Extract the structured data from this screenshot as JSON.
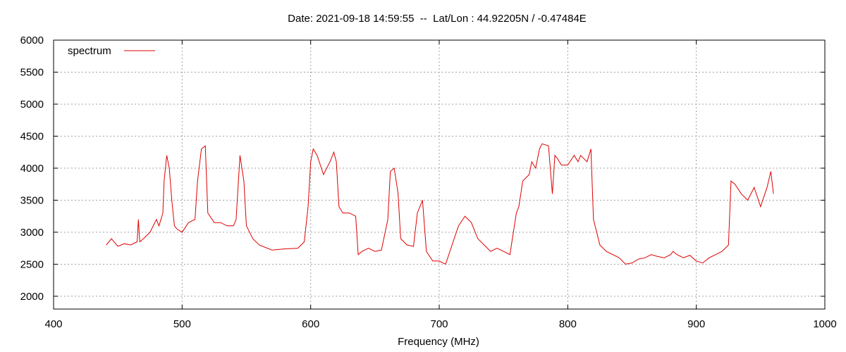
{
  "chart_data": {
    "type": "line",
    "title": "Date: 2021-09-18 14:59:55  --  Lat/Lon : 44.92205N / -0.47484E",
    "xlabel": "Frequency (MHz)",
    "ylabel": "",
    "xlim": [
      400,
      1000
    ],
    "ylim": [
      1800,
      6000
    ],
    "xticks": [
      400,
      500,
      600,
      700,
      800,
      900,
      1000
    ],
    "yticks": [
      2000,
      2500,
      3000,
      3500,
      4000,
      4500,
      5000,
      5500,
      6000
    ],
    "grid": true,
    "legend_position": "top-left",
    "series": [
      {
        "name": "spectrum",
        "color": "#dd0000",
        "x": [
          441,
          445,
          450,
          455,
          460,
          465,
          466,
          467,
          470,
          475,
          480,
          482,
          485,
          486,
          488,
          490,
          492,
          494,
          496,
          500,
          505,
          510,
          512,
          515,
          518,
          520,
          525,
          530,
          535,
          540,
          542,
          545,
          548,
          550,
          555,
          560,
          570,
          580,
          590,
          595,
          598,
          600,
          602,
          605,
          610,
          615,
          618,
          620,
          622,
          625,
          630,
          635,
          637,
          640,
          645,
          650,
          655,
          660,
          662,
          665,
          668,
          670,
          675,
          680,
          683,
          687,
          690,
          695,
          700,
          705,
          710,
          715,
          720,
          725,
          730,
          735,
          740,
          745,
          750,
          755,
          760,
          762,
          765,
          770,
          772,
          775,
          778,
          780,
          785,
          788,
          790,
          792,
          795,
          800,
          805,
          808,
          810,
          815,
          818,
          820,
          825,
          830,
          840,
          845,
          850,
          855,
          860,
          865,
          870,
          875,
          880,
          882,
          885,
          890,
          895,
          900,
          905,
          910,
          915,
          920,
          925,
          927,
          930,
          935,
          940,
          945,
          950,
          955,
          958,
          960
        ],
        "values": [
          2800,
          2900,
          2780,
          2820,
          2800,
          2850,
          3200,
          2850,
          2900,
          3000,
          3200,
          3100,
          3300,
          3800,
          4200,
          4000,
          3500,
          3100,
          3050,
          3000,
          3150,
          3200,
          3800,
          4300,
          4350,
          3300,
          3150,
          3150,
          3100,
          3100,
          3200,
          4200,
          3800,
          3100,
          2900,
          2800,
          2720,
          2740,
          2750,
          2850,
          3400,
          4100,
          4300,
          4200,
          3900,
          4100,
          4250,
          4100,
          3400,
          3300,
          3300,
          3250,
          2650,
          2700,
          2750,
          2700,
          2720,
          3200,
          3950,
          4000,
          3600,
          2900,
          2800,
          2780,
          3300,
          3500,
          2700,
          2550,
          2550,
          2500,
          2800,
          3100,
          3250,
          3150,
          2900,
          2800,
          2700,
          2750,
          2700,
          2650,
          3300,
          3400,
          3800,
          3900,
          4100,
          4000,
          4300,
          4380,
          4350,
          3600,
          4200,
          4150,
          4050,
          4050,
          4200,
          4100,
          4200,
          4100,
          4300,
          3200,
          2800,
          2700,
          2600,
          2500,
          2520,
          2580,
          2600,
          2650,
          2620,
          2600,
          2650,
          2700,
          2650,
          2600,
          2640,
          2550,
          2520,
          2600,
          2650,
          2700,
          2800,
          3800,
          3750,
          3600,
          3500,
          3700,
          3400,
          3700,
          3950,
          3600
        ]
      }
    ]
  }
}
